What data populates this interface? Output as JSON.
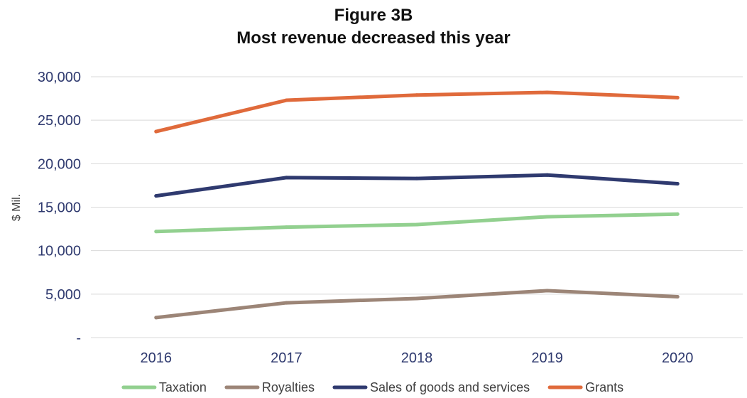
{
  "chart_data": {
    "type": "line",
    "title": "Figure 3B",
    "subtitle": "Most revenue decreased this year",
    "xlabel": "",
    "ylabel": "$ Mil.",
    "categories": [
      "2016",
      "2017",
      "2018",
      "2019",
      "2020"
    ],
    "ylim": [
      0,
      30000
    ],
    "yticks": [
      0,
      5000,
      10000,
      15000,
      20000,
      25000,
      30000
    ],
    "ytick_labels": [
      "-",
      "5,000",
      "10,000",
      "15,000",
      "20,000",
      "25,000",
      "30,000"
    ],
    "grid": "horizontal",
    "legend_position": "bottom",
    "series": [
      {
        "name": "Taxation",
        "color": "#92d08f",
        "values": [
          12200,
          12700,
          13000,
          13900,
          14200
        ]
      },
      {
        "name": "Royalties",
        "color": "#9c8577",
        "values": [
          2300,
          4000,
          4500,
          5400,
          4700
        ]
      },
      {
        "name": "Sales of goods and services",
        "color": "#2f3a6f",
        "values": [
          16300,
          18400,
          18300,
          18700,
          17700
        ]
      },
      {
        "name": "Grants",
        "color": "#e06a3b",
        "values": [
          23700,
          27300,
          27900,
          28200,
          27600
        ]
      }
    ]
  },
  "colors": {
    "grid": "#d9d9d9",
    "tick_text": "#2f3a6f",
    "axis_label": "#404040"
  }
}
